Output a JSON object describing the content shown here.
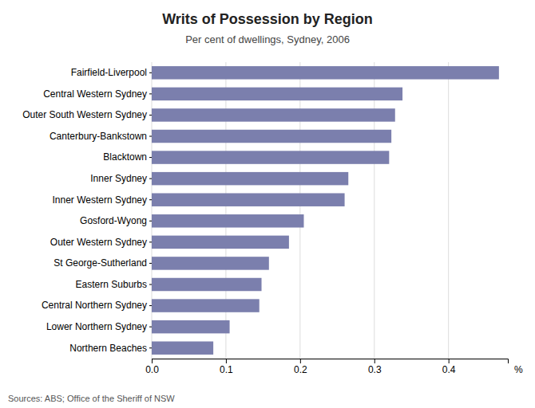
{
  "chart_data": {
    "type": "bar",
    "orientation": "horizontal",
    "title": "Writs of Possession by Region",
    "subtitle": "Per cent of dwellings, Sydney, 2006",
    "source": "Sources: ABS; Office of the Sheriff of NSW",
    "xlabel": "%",
    "categories": [
      "Northern Beaches",
      "Lower Northern Sydney",
      "Central Northern Sydney",
      "Eastern Suburbs",
      "St George-Sutherland",
      "Outer Western Sydney",
      "Gosford-Wyong",
      "Inner Western Sydney",
      "Inner Sydney",
      "Blacktown",
      "Canterbury-Bankstown",
      "Outer South Western Sydney",
      "Central Western Sydney",
      "Fairfield-Liverpool"
    ],
    "values": [
      0.083,
      0.105,
      0.145,
      0.148,
      0.158,
      0.185,
      0.205,
      0.26,
      0.265,
      0.32,
      0.323,
      0.328,
      0.338,
      0.468
    ],
    "color": "#7b7fad",
    "xlim": [
      0.0,
      0.48
    ],
    "xticks": [
      {
        "value": 0.0,
        "label": "0.0"
      },
      0.1,
      0.2,
      0.3,
      0.4
    ],
    "grid": true
  }
}
